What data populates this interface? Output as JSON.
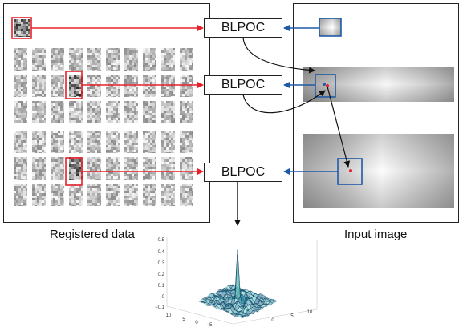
{
  "labels": {
    "block": "BLPOC",
    "registered": "Registered data",
    "input": "Input image"
  },
  "surface_axes": {
    "z_ticks": [
      "0.5",
      "0.4",
      "0.3",
      "0.2",
      "0.1",
      "0",
      "−0.1"
    ],
    "y_ticks": [
      "10",
      "5",
      "0",
      "−5"
    ],
    "x_ticks": [
      "0",
      "5",
      "10"
    ]
  },
  "colors": {
    "red": "#e8202a",
    "blue": "#1f5aa8",
    "black": "#111111"
  }
}
